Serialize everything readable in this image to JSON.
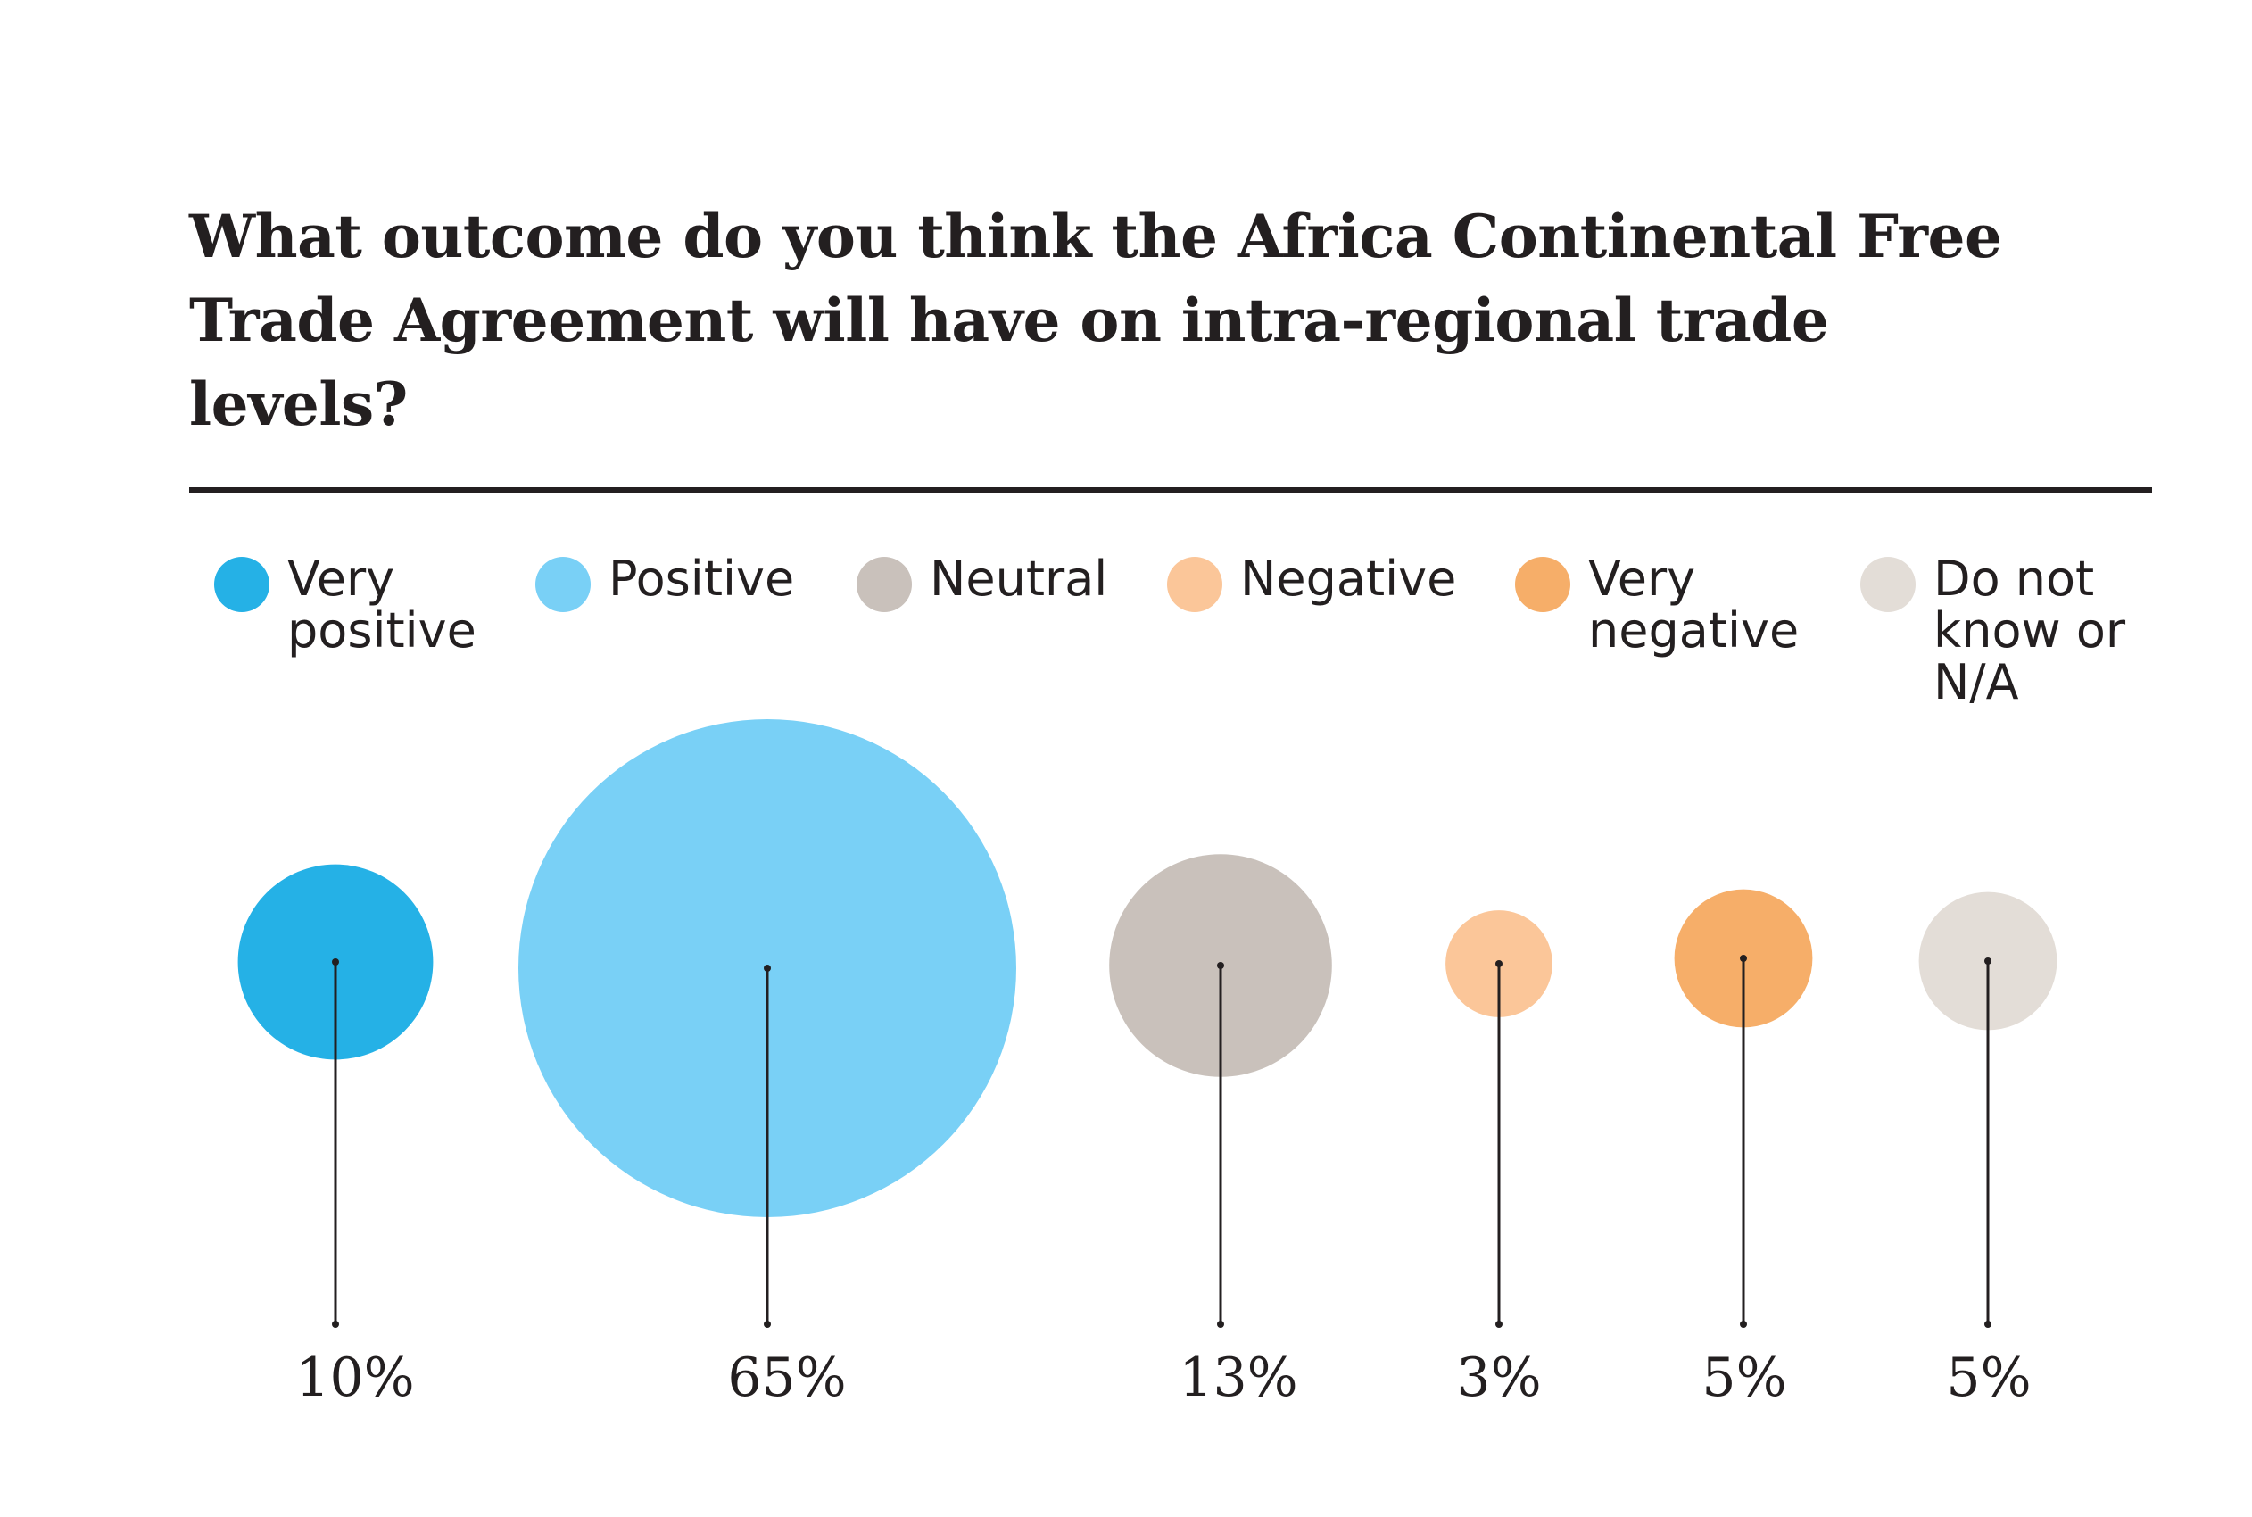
{
  "chart_data": {
    "type": "bubble",
    "title": "What outcome do you think the Africa Continental Free Trade Agreement will have on intra-regional trade levels?",
    "categories": [
      "Very positive",
      "Positive",
      "Neutral",
      "Negative",
      "Very negative",
      "Do not know or N/A"
    ],
    "values": [
      10,
      65,
      13,
      3,
      5,
      5
    ],
    "value_labels": [
      "10%",
      "65%",
      "13%",
      "3%",
      "5%",
      "5%"
    ],
    "unit": "%",
    "legend": {
      "placement": "top",
      "items": [
        {
          "label": "Very\npositive",
          "color": "#25b1e6"
        },
        {
          "label": "Positive",
          "color": "#79d0f6"
        },
        {
          "label": "Neutral",
          "color": "#c9c1bb"
        },
        {
          "label": "Negative",
          "color": "#fbc699"
        },
        {
          "label": "Very\nnegative",
          "color": "#f6ae69"
        },
        {
          "label": "Do not\nknow or\nN/A",
          "color": "#e3ddd7"
        }
      ]
    },
    "colors": [
      "#25b1e6",
      "#79d0f6",
      "#c9c1bb",
      "#fbc699",
      "#f6ae69",
      "#e3ddd7"
    ]
  }
}
